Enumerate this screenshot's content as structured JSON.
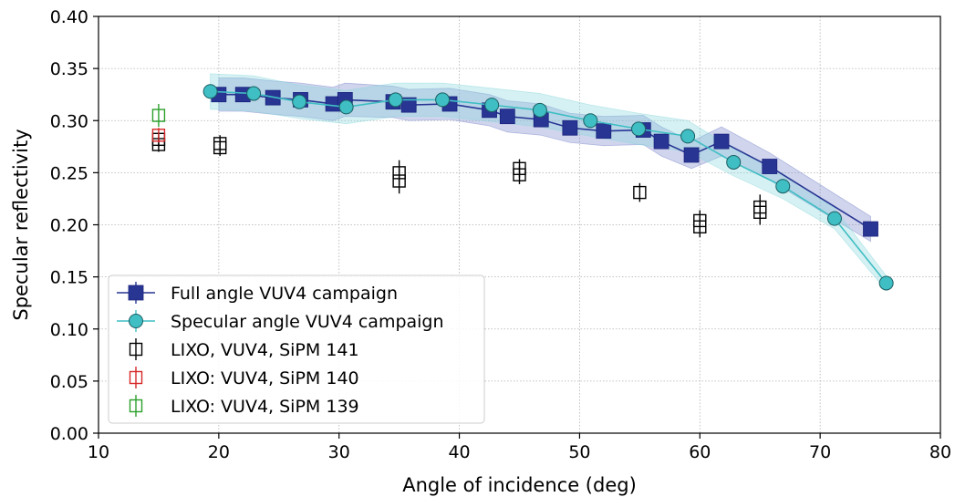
{
  "chart_data": {
    "type": "scatter",
    "xlabel": "Angle of incidence (deg)",
    "ylabel": "Specular reflectivity",
    "xlim": [
      10,
      80
    ],
    "ylim": [
      0.0,
      0.4
    ],
    "xticks": [
      10,
      20,
      30,
      40,
      50,
      60,
      70,
      80
    ],
    "yticks": [
      0.0,
      0.05,
      0.1,
      0.15,
      0.2,
      0.25,
      0.3,
      0.35,
      0.4
    ],
    "xtick_labels": [
      "10",
      "20",
      "30",
      "40",
      "50",
      "60",
      "70",
      "80"
    ],
    "ytick_labels": [
      "0.00",
      "0.05",
      "0.10",
      "0.15",
      "0.20",
      "0.25",
      "0.30",
      "0.35",
      "0.40"
    ],
    "grid": true,
    "legend_position": "lower-left",
    "series": [
      {
        "name": "Full angle VUV4 campaign",
        "marker": "square",
        "line": true,
        "band": true,
        "color": "#283593",
        "band_color": "#7986cb",
        "x": [
          20.0,
          22.0,
          24.5,
          26.8,
          29.5,
          30.5,
          34.5,
          35.8,
          39.2,
          42.5,
          44.0,
          46.8,
          49.2,
          52.0,
          55.3,
          56.8,
          59.3,
          61.8,
          65.8,
          74.2
        ],
        "y": [
          0.325,
          0.325,
          0.322,
          0.32,
          0.316,
          0.32,
          0.318,
          0.315,
          0.316,
          0.31,
          0.304,
          0.301,
          0.293,
          0.29,
          0.291,
          0.28,
          0.267,
          0.28,
          0.256,
          0.196
        ],
        "err": [
          0.016,
          0.016,
          0.016,
          0.016,
          0.016,
          0.016,
          0.015,
          0.015,
          0.015,
          0.015,
          0.015,
          0.015,
          0.014,
          0.014,
          0.014,
          0.014,
          0.013,
          0.014,
          0.013,
          0.012
        ]
      },
      {
        "name": "Specular angle VUV4 campaign",
        "marker": "circle",
        "line": true,
        "band": true,
        "color": "#3fbec3",
        "band_color": "#8ad8dc",
        "x": [
          19.3,
          22.9,
          26.7,
          30.6,
          34.7,
          38.6,
          42.7,
          46.7,
          50.9,
          54.9,
          59.0,
          62.8,
          66.9,
          71.2,
          75.5
        ],
        "y": [
          0.328,
          0.326,
          0.318,
          0.313,
          0.32,
          0.32,
          0.315,
          0.31,
          0.3,
          0.292,
          0.285,
          0.26,
          0.237,
          0.206,
          0.144
        ],
        "err": [
          0.017,
          0.017,
          0.016,
          0.016,
          0.016,
          0.016,
          0.016,
          0.016,
          0.015,
          0.015,
          0.015,
          0.013,
          0.012,
          0.01,
          0.007
        ]
      },
      {
        "name": "LIXO, VUV4, SiPM 141",
        "marker": "open-square",
        "line": false,
        "color": "#000000",
        "x": [
          15.0,
          15.0,
          20.1,
          20.1,
          35.0,
          35.0,
          45.0,
          45.0,
          55.0,
          60.0,
          60.0,
          65.0,
          65.0
        ],
        "y": [
          0.277,
          0.282,
          0.274,
          0.278,
          0.25,
          0.242,
          0.254,
          0.248,
          0.231,
          0.204,
          0.198,
          0.217,
          0.212
        ],
        "err": [
          0.007,
          0.007,
          0.008,
          0.008,
          0.012,
          0.012,
          0.009,
          0.009,
          0.009,
          0.01,
          0.01,
          0.012,
          0.012
        ]
      },
      {
        "name": "LIXO: VUV4, SiPM 140",
        "marker": "open-square",
        "line": false,
        "color": "#d62728",
        "x": [
          15.0
        ],
        "y": [
          0.286
        ],
        "err": [
          0.007
        ]
      },
      {
        "name": "LIXO: VUV4, SiPM 139",
        "marker": "open-square",
        "line": false,
        "color": "#2ca02c",
        "x": [
          15.0
        ],
        "y": [
          0.305
        ],
        "err": [
          0.011
        ]
      }
    ]
  }
}
